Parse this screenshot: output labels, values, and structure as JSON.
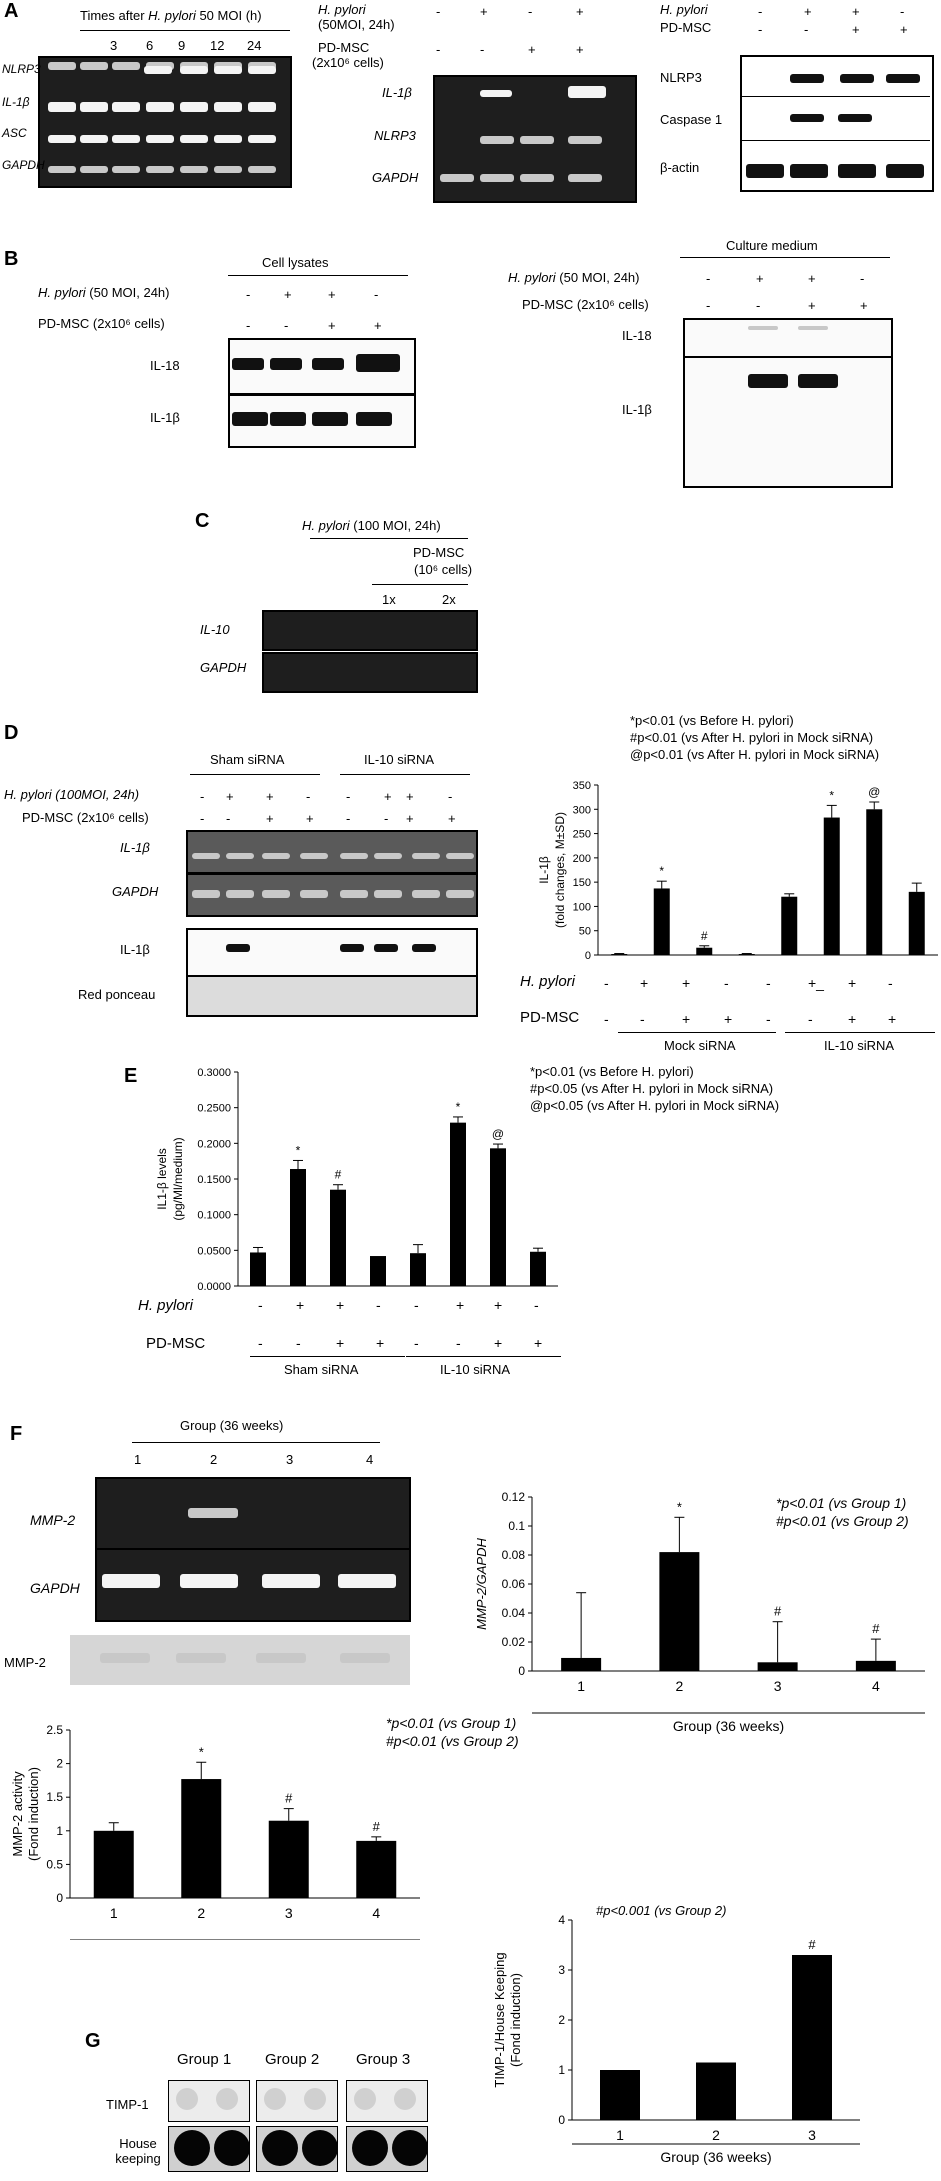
{
  "panelA": {
    "label": "A",
    "left_title_pre": "Times after ",
    "left_title_it": "H. pylori",
    "left_title_post": " 50 MOI (h)",
    "times": [
      "3",
      "6",
      "9",
      "12",
      "24"
    ],
    "rows_left": [
      "NLRP3",
      "IL-1β",
      "ASC",
      "GAPDH"
    ],
    "mid_hp_label": "H. pylori",
    "mid_hp_sub": "(50MOI, 24h)",
    "mid_msc_label": "PD-MSC",
    "mid_msc_sub": "(2x10⁶ cells)",
    "mid_hp_signs": [
      "-",
      "+",
      "-",
      "+"
    ],
    "mid_msc_signs": [
      "-",
      "-",
      "+",
      "+"
    ],
    "rows_mid": [
      "IL-1β",
      "NLRP3",
      "GAPDH"
    ],
    "right_hp_label": "H. pylori",
    "right_msc_label": "PD-MSC",
    "right_hp_signs": [
      "-",
      "+",
      "+",
      "-"
    ],
    "right_msc_signs": [
      "-",
      "-",
      "+",
      "+"
    ],
    "rows_right": [
      "NLRP3",
      "Caspase 1",
      "β-actin"
    ]
  },
  "panelB": {
    "label": "B",
    "left_header": "Cell lysates",
    "right_header": "Culture medium",
    "hp_label": "H. pylori",
    "hp_cond": " (50 MOI, 24h)",
    "msc_label": "PD-MSC (2x10⁶ cells)",
    "hp_signs": [
      "-",
      "+",
      "+",
      "-"
    ],
    "msc_signs": [
      "-",
      "-",
      "+",
      "+"
    ],
    "rows": [
      "IL-18",
      "IL-1β"
    ]
  },
  "panelC": {
    "label": "C",
    "hp_label": "H. pylori",
    "hp_cond": " (100 MOI, 24h)",
    "msc_label": "PD-MSC",
    "msc_sub": "(10⁶ cells)",
    "doses": [
      "1x",
      "2x"
    ],
    "rows": [
      "IL-10",
      "GAPDH"
    ]
  },
  "panelD": {
    "label": "D",
    "group_left": "Sham siRNA",
    "group_right": "IL-10 siRNA",
    "hp_label": "H. pylori (100MOI, 24h)",
    "msc_label": "PD-MSC (2x10⁶ cells)",
    "hp_signs": [
      "-",
      "+",
      "+",
      "-",
      "-",
      "+",
      "+",
      "-"
    ],
    "msc_signs": [
      "-",
      "-",
      "+",
      "+",
      "-",
      "-",
      "+",
      "+"
    ],
    "rows": [
      "IL-1β",
      "GAPDH",
      "IL-1β",
      "Red ponceau"
    ],
    "legend": [
      "*p<0.01 (vs Before H. pylori)",
      "#p<0.01 (vs After H. pylori in Mock siRNA)",
      "@p<0.01 (vs After H. pylori in Mock siRNA)"
    ],
    "chart_hp_label": "H. pylori",
    "chart_msc_label": "PD-MSC",
    "chart_hp_signs": [
      "-",
      "+",
      "+",
      "-",
      "-",
      "+_",
      "+",
      "-"
    ],
    "chart_msc_signs": [
      "-",
      "-",
      "+",
      "+",
      "-",
      "-",
      "+",
      "+"
    ],
    "chart_group_left": "Mock siRNA",
    "chart_group_right": "IL-10 siRNA"
  },
  "panelE": {
    "label": "E",
    "legend": [
      "*p<0.01 (vs Before H. pylori)",
      "#p<0.05 (vs After H. pylori in Mock siRNA)",
      "@p<0.05 (vs After H. pylori in Mock siRNA)"
    ],
    "hp_label": "H. pylori",
    "msc_label": "PD-MSC",
    "hp_signs": [
      "-",
      "+",
      "+",
      "-",
      "-",
      "+",
      "+",
      "-"
    ],
    "msc_signs": [
      "-",
      "-",
      "+",
      "+",
      "-",
      "-",
      "+",
      "+"
    ],
    "group_left": "Sham siRNA",
    "group_right": "IL-10 siRNA"
  },
  "panelF": {
    "label": "F",
    "group_header": "Group (36 weeks)",
    "lanes": [
      "1",
      "2",
      "3",
      "4"
    ],
    "rows": [
      "MMP-2",
      "GAPDH"
    ],
    "zymo_label": "MMP-2",
    "legend1": [
      "*p<0.01 (vs Group 1)",
      "#p<0.01 (vs Group 2)"
    ],
    "legend2": [
      "*p<0.01 (vs Group 1)",
      "#p<0.01 (vs Group 2)"
    ]
  },
  "panelG": {
    "label": "G",
    "groups": [
      "Group 1",
      "Group 2",
      "Group 3"
    ],
    "rows": [
      "TIMP-1",
      "House keeping"
    ],
    "legend": "#p<0.001 (vs Group 2)"
  },
  "chart_data": [
    {
      "type": "bar",
      "ylabel": "IL-1β (fold changes, M±SD)",
      "xlabel": "",
      "ylim": [
        0,
        350
      ],
      "yticks": [
        0,
        50,
        100,
        150,
        200,
        250,
        300,
        350
      ],
      "categories": [
        "Mock -/-",
        "Mock +/-",
        "Mock +/+",
        "Mock -/+",
        "IL-10 -/-",
        "IL-10 +/-",
        "IL-10 +/+",
        "IL-10 -/+"
      ],
      "values": [
        2,
        137,
        15,
        2,
        120,
        283,
        300,
        130
      ],
      "errors": [
        1,
        15,
        4,
        1,
        6,
        25,
        15,
        18
      ],
      "annotations": [
        "",
        "*",
        "#",
        "",
        "",
        "*",
        "@",
        ""
      ],
      "color": "#000000"
    },
    {
      "type": "bar",
      "ylabel": "IL1-β levels (pg/Ml/medium)",
      "xlabel": "",
      "ylim": [
        0,
        0.3
      ],
      "yticks": [
        "0.0000",
        "0.0500",
        "0.1000",
        "0.1500",
        "0.2000",
        "0.2500",
        "0.3000"
      ],
      "categories": [
        "Sham -/-",
        "Sham +/-",
        "Sham +/+",
        "Sham -/+",
        "IL-10 -/-",
        "IL-10 +/-",
        "IL-10 +/+",
        "IL-10 -/+"
      ],
      "values": [
        0.047,
        0.164,
        0.135,
        0.042,
        0.046,
        0.229,
        0.193,
        0.048
      ],
      "errors": [
        0.007,
        0.012,
        0.007,
        0.0,
        0.012,
        0.008,
        0.006,
        0.005
      ],
      "annotations": [
        "",
        "*",
        "#",
        "",
        "",
        "*",
        "@",
        ""
      ],
      "color": "#000000"
    },
    {
      "type": "bar",
      "ylabel": "MMP-2/GAPDH",
      "xlabel": "Group (36 weeks)",
      "ylim": [
        0,
        0.12
      ],
      "yticks": [
        "0",
        "0.02",
        "0.04",
        "0.06",
        "0.08",
        "0.1",
        "0.12"
      ],
      "categories": [
        "1",
        "2",
        "3",
        "4"
      ],
      "values": [
        0.009,
        0.082,
        0.006,
        0.007
      ],
      "errors": [
        0.045,
        0.024,
        0.028,
        0.015
      ],
      "annotations": [
        "",
        "*",
        "#",
        "#"
      ],
      "color": "#000000"
    },
    {
      "type": "bar",
      "ylabel": "MMP-2 activity (Fond induction)",
      "xlabel": "Group (36 weeks)",
      "ylim": [
        0,
        2.5
      ],
      "yticks": [
        "0",
        "0.5",
        "1",
        "1.5",
        "2",
        "2.5"
      ],
      "categories": [
        "1",
        "2",
        "3",
        "4"
      ],
      "values": [
        1.0,
        1.77,
        1.15,
        0.85
      ],
      "errors": [
        0.12,
        0.25,
        0.18,
        0.06
      ],
      "annotations": [
        "",
        "*",
        "#",
        "#"
      ],
      "color": "#000000"
    },
    {
      "type": "bar",
      "ylabel": "TIMP-1/House Keeping (Fond induction)",
      "xlabel": "Group (36 weeks)",
      "ylim": [
        0,
        4
      ],
      "yticks": [
        "0",
        "1",
        "2",
        "3",
        "4"
      ],
      "categories": [
        "1",
        "2",
        "3"
      ],
      "values": [
        1.0,
        1.15,
        3.3
      ],
      "errors": [
        0,
        0,
        0
      ],
      "annotations": [
        "",
        "",
        "#"
      ],
      "color": "#000000"
    }
  ]
}
